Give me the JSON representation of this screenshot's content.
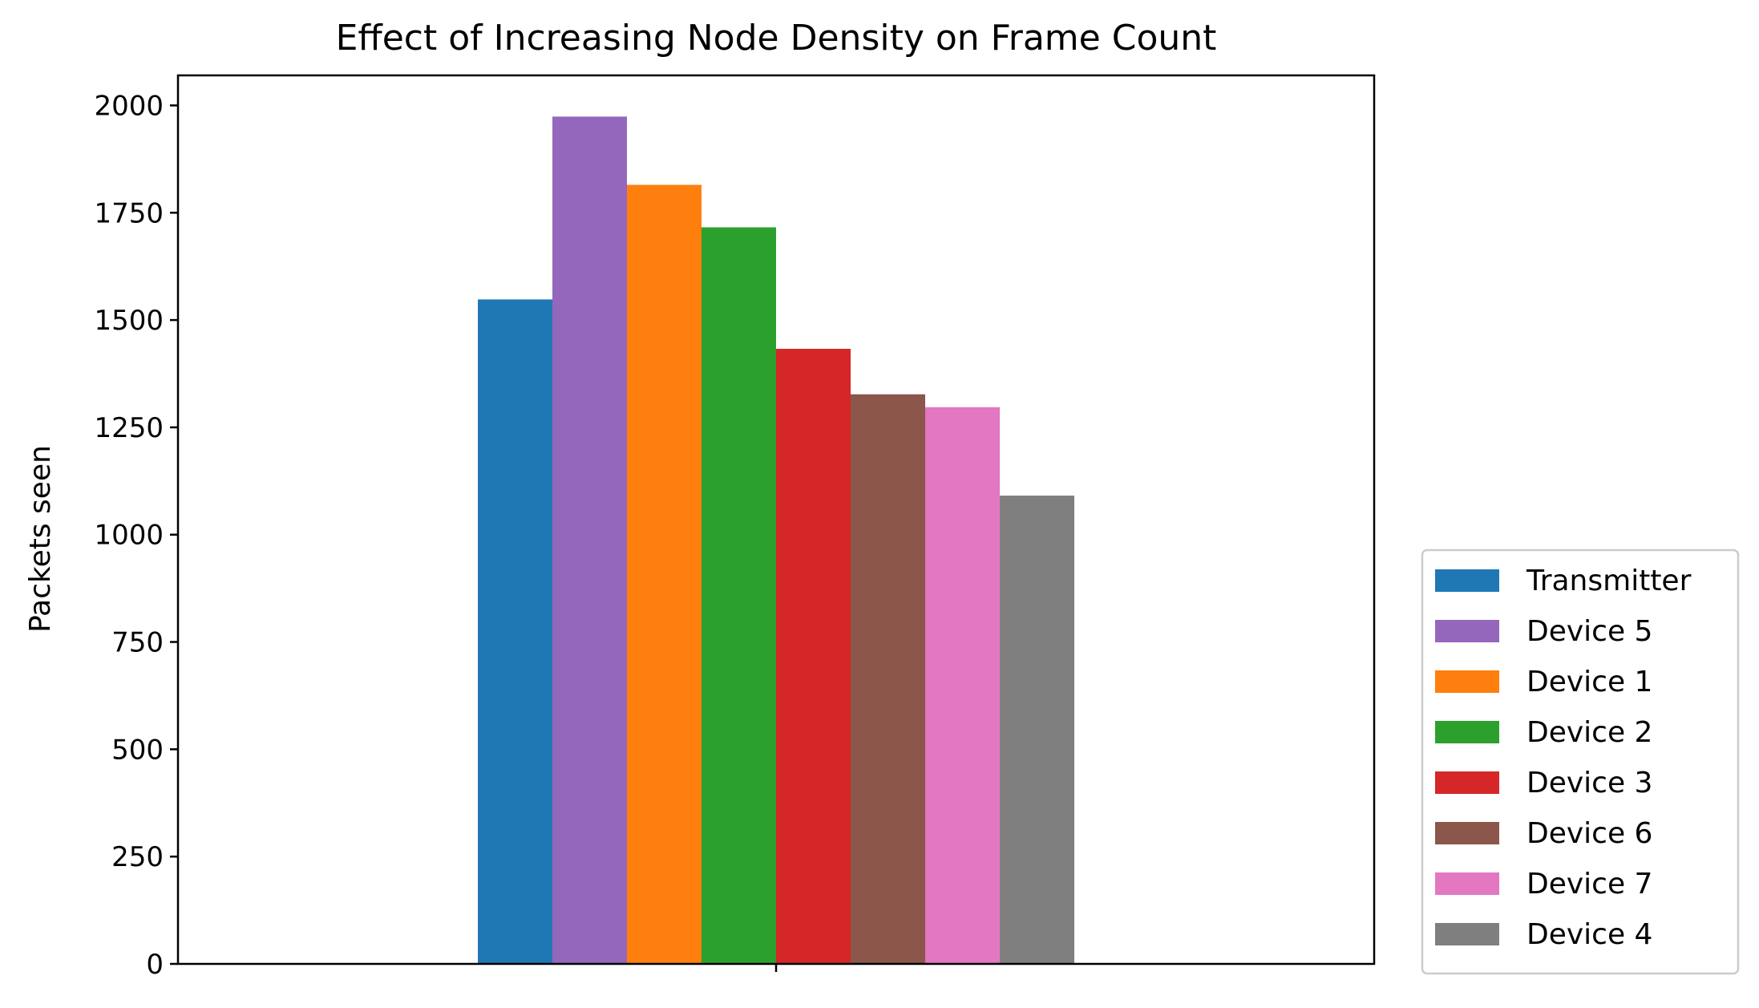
{
  "chart_data": {
    "type": "bar",
    "title": "Effect of Increasing Node Density on Frame Count",
    "xlabel": "",
    "ylabel": "Packets seen",
    "ylim": [
      0,
      2070
    ],
    "yticks": [
      0,
      250,
      500,
      750,
      1000,
      1250,
      1500,
      1750,
      2000
    ],
    "grid": false,
    "legend_position": "lower-right-outside",
    "series": [
      {
        "name": "Transmitter",
        "value": 1548,
        "color": "#1f77b4"
      },
      {
        "name": "Device 5",
        "value": 1974,
        "color": "#9467bd"
      },
      {
        "name": "Device 1",
        "value": 1815,
        "color": "#ff7f0e"
      },
      {
        "name": "Device 2",
        "value": 1716,
        "color": "#2ca02c"
      },
      {
        "name": "Device 3",
        "value": 1433,
        "color": "#d62728"
      },
      {
        "name": "Device 6",
        "value": 1327,
        "color": "#8c564b"
      },
      {
        "name": "Device 7",
        "value": 1297,
        "color": "#e377c2"
      },
      {
        "name": "Device 4",
        "value": 1091,
        "color": "#7f7f7f"
      }
    ]
  }
}
